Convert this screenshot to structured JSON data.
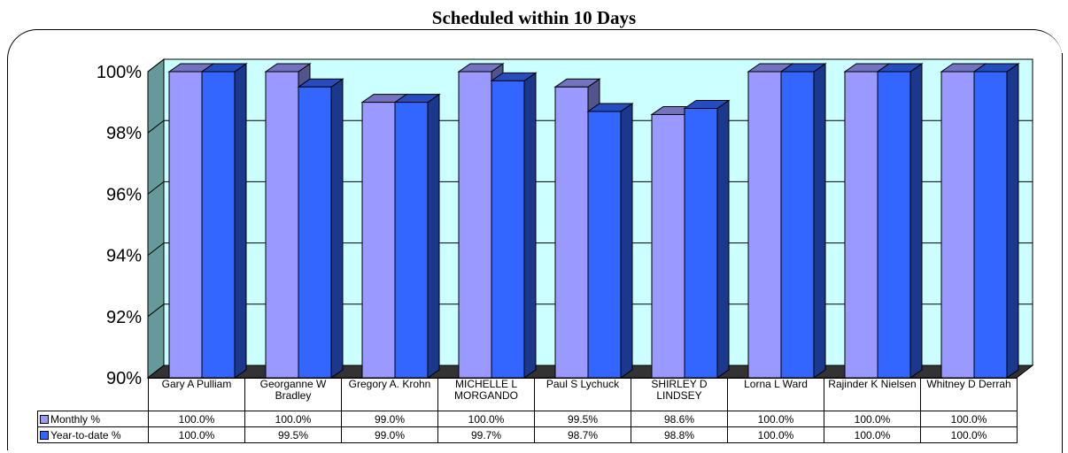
{
  "chart_data": {
    "type": "bar",
    "title": "Scheduled within 10 Days",
    "categories": [
      "Gary A Pulliam",
      "Georganne W Bradley",
      "Gregory A. Krohn",
      "MICHELLE L MORGANDO",
      "Paul S Lychuck",
      "SHIRLEY D LINDSEY",
      "Lorna L Ward",
      "Rajinder K Nielsen",
      "Whitney D Derrah"
    ],
    "category_labels": [
      "Gary A Pulliam",
      "Georganne W Bradley",
      "Gregory A. Krohn",
      "MICHELLE L\nMORGANDO",
      "Paul S Lychuck",
      "SHIRLEY D LINDSEY",
      "Lorna L Ward",
      "Rajinder K Nielsen",
      "Whitney D Derrah"
    ],
    "series": [
      {
        "name": "Monthly %",
        "values": [
          100.0,
          100.0,
          99.0,
          100.0,
          99.5,
          98.6,
          100.0,
          100.0,
          100.0
        ],
        "value_labels": [
          "100.0%",
          "100.0%",
          "99.0%",
          "100.0%",
          "99.5%",
          "98.6%",
          "100.0%",
          "100.0%",
          "100.0%"
        ],
        "color": "#9999ff"
      },
      {
        "name": "Year-to-date %",
        "values": [
          100.0,
          99.5,
          99.0,
          99.7,
          98.7,
          98.8,
          100.0,
          100.0,
          100.0
        ],
        "value_labels": [
          "100.0%",
          "99.5%",
          "99.0%",
          "99.7%",
          "98.7%",
          "98.8%",
          "100.0%",
          "100.0%",
          "100.0%"
        ],
        "color": "#3366ff"
      }
    ],
    "ylim": [
      90,
      100
    ],
    "yticks": [
      "90%",
      "92%",
      "94%",
      "96%",
      "98%",
      "100%"
    ],
    "grid": true,
    "plot_background": "#ccffff",
    "wall_color": "#669999",
    "floor_color": "#333333",
    "legend": "data-table"
  }
}
